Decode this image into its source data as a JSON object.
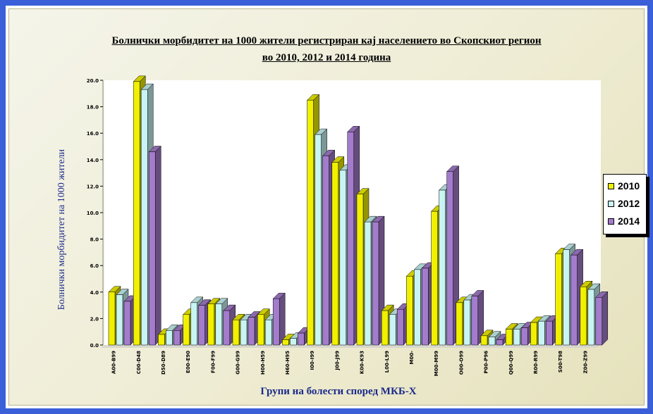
{
  "chart_data": {
    "type": "bar",
    "title": "Болнички морбидитет на 1000 жители регистриран кај населението во Скопскиот регион",
    "subtitle": "во 2010, 2012 и 2014 година",
    "xlabel": "Групи на болести според МКБ-X",
    "ylabel": "Болнички морбидитет на 1000 жители",
    "ylim": [
      0,
      20
    ],
    "yticks": [
      "0.0",
      "2.0",
      "4.0",
      "6.0",
      "8.0",
      "10.0",
      "12.0",
      "14.0",
      "16.0",
      "18.0",
      "20.0"
    ],
    "categories": [
      "A00-B99",
      "C00-D48",
      "D50-D89",
      "E00-E90",
      "F00-F99",
      "G00-G99",
      "H00-H59",
      "H60-H95",
      "I00-I99",
      "J00-J99",
      "K00-K93",
      "L00-L99",
      "M00-",
      "M00-M99",
      "O00-O99",
      "P00-P96",
      "Q00-Q99",
      "R00-R99",
      "S00-T98",
      "Z00-Z99"
    ],
    "series": [
      {
        "name": "2010",
        "color": "#f0f000",
        "values": [
          4.0,
          19.9,
          0.8,
          2.3,
          3.1,
          1.9,
          2.3,
          0.4,
          18.5,
          13.8,
          11.4,
          2.6,
          5.2,
          10.1,
          3.2,
          0.7,
          1.2,
          1.7,
          6.9,
          4.4
        ]
      },
      {
        "name": "2012",
        "color": "#c8f4f4",
        "values": [
          3.8,
          19.3,
          1.1,
          3.2,
          3.1,
          1.9,
          1.9,
          0.5,
          15.9,
          13.2,
          9.3,
          2.3,
          5.7,
          11.7,
          3.4,
          0.6,
          1.2,
          1.8,
          7.2,
          4.2
        ]
      },
      {
        "name": "2014",
        "color": "#a47ccc",
        "values": [
          3.3,
          14.6,
          1.1,
          3.0,
          2.6,
          2.1,
          3.5,
          0.9,
          14.3,
          16.1,
          9.3,
          2.7,
          5.8,
          13.1,
          3.7,
          0.4,
          1.3,
          1.8,
          6.8,
          3.6
        ]
      }
    ],
    "legend_position": "right",
    "grid": false
  }
}
